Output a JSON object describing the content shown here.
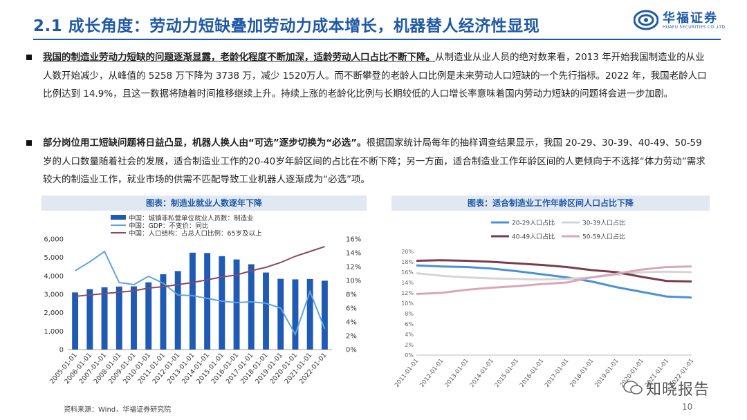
{
  "header": {
    "title": "2.1 成长角度：劳动力短缺叠加劳动力成本增长，机器替人经济性显现"
  },
  "logo": {
    "name_cn": "华福证券",
    "name_en": "HUAFU SECURITIES CO.,LTD."
  },
  "paragraphs": {
    "p1": {
      "lead": "我国的制造业劳动力短缺的问题逐渐显露，老龄化程度不断加深，适龄劳动人口占比不断下降。",
      "body": "从制造业从业人员的绝对数来看，2013 年开始我国制造业的从业人数开始减少，从峰值的 5258 万下降为 3738 万，减少 1520万人。而不断攀登的老龄人口比例是未来劳动人口短缺的一个先行指标。2022 年，我国老龄人口比例达到 14.9%，且这一数据将随着时间推移继续上升。持续上涨的老龄化比例与长期较低的人口增长率意味着国内劳动力短缺的问题将会进一步加剧。"
    },
    "p2": {
      "lead": "部分岗位用工短缺问题将日益凸显，机器人换人由“可选”逐步切换为“必选”。",
      "body": "根据国家统计局每年的抽样调查结果显示，我国 20-29、30-39、40-49、50-59 岁的人口数量随着社会的发展，适合制造业工作的20-40岁年龄区间的占比在不断下降；另一方面，适合制造业工作年龄区间的人更倾向于不选择“体力劳动”需求较大的制造业工作，就业市场的供需不匹配导致工业机器人逐渐成为“必选”项。"
    }
  },
  "chart_headers": {
    "left": "图表：制造业就业人数逐年下降",
    "right": "图表：适合制造业工作年龄区间人口占比下降"
  },
  "footer": {
    "source": "资料来源：Wind，华福证券研究院",
    "page": "10",
    "watermark": "知晓报告"
  },
  "chart_data": [
    {
      "type": "bar",
      "title": "",
      "categories": [
        "2005-01-01",
        "2006-01-01",
        "2007-01-01",
        "2008-01-01",
        "2009-01-01",
        "2010-01-01",
        "2011-01-01",
        "2012-01-01",
        "2013-01-01",
        "2014-01-01",
        "2015-01-01",
        "2016-01-01",
        "2017-01-01",
        "2018-01-01",
        "2019-01-01",
        "2020-01-01",
        "2021-01-01",
        "2022-01-01"
      ],
      "series": [
        {
          "name": "中国：城镇非私营单位就业人员数：制造业",
          "axis": "left",
          "kind": "bar",
          "color": "#1f5bb5",
          "values": [
            3100,
            3280,
            3380,
            3420,
            3430,
            3650,
            4090,
            4260,
            5258,
            5240,
            5070,
            4890,
            4630,
            4180,
            3840,
            3810,
            3830,
            3738
          ]
        },
        {
          "name": "中国：GDP：不变价：同比",
          "axis": "right",
          "kind": "line",
          "color": "#5fa3dd",
          "values": [
            11.4,
            12.7,
            14.2,
            9.7,
            9.4,
            10.6,
            9.6,
            7.9,
            7.8,
            7.4,
            7.0,
            6.8,
            6.9,
            6.7,
            6.0,
            2.2,
            8.4,
            3.0
          ]
        },
        {
          "name": "中国：人口结构：占总人口比例：65岁及以上",
          "axis": "right",
          "kind": "line",
          "color": "#8b4a5c",
          "values": [
            7.7,
            7.9,
            8.1,
            8.3,
            8.5,
            8.9,
            9.1,
            9.4,
            9.7,
            10.1,
            10.5,
            10.8,
            11.4,
            11.9,
            12.6,
            13.5,
            14.2,
            14.9
          ]
        }
      ],
      "y_left": {
        "min": 0,
        "max": 6000,
        "ticks": [
          "0",
          "1,000",
          "2,000",
          "3,000",
          "4,000",
          "5,000",
          "6,000"
        ]
      },
      "y_right": {
        "min": 0,
        "max": 16,
        "ticks": [
          "0%",
          "2%",
          "4%",
          "6%",
          "8%",
          "10%",
          "12%",
          "14%",
          "16%"
        ]
      },
      "legend": "top"
    },
    {
      "type": "line",
      "title": "",
      "categories": [
        "2011-01-01",
        "2012-01-01",
        "2013-01-01",
        "2014-01-01",
        "2015-01-01",
        "2016-01-01",
        "2017-01-01",
        "2018-01-01",
        "2019-01-01",
        "2020-01-01",
        "2021-01-01",
        "2022-01-01"
      ],
      "series": [
        {
          "name": "20-29人口占比",
          "color": "#4a90d9",
          "values": [
            17.3,
            17.1,
            17.0,
            16.7,
            16.2,
            15.6,
            15.0,
            14.2,
            13.1,
            12.2,
            11.3,
            11.1
          ]
        },
        {
          "name": "30-39人口占比",
          "color": "#d5d5d5",
          "values": [
            15.8,
            15.3,
            15.0,
            14.8,
            14.7,
            14.6,
            14.7,
            15.0,
            15.5,
            16.0,
            16.1,
            16.0
          ]
        },
        {
          "name": "40-49人口占比",
          "color": "#7a3b4b",
          "values": [
            18.2,
            18.3,
            18.2,
            18.0,
            17.7,
            17.4,
            17.0,
            16.4,
            16.0,
            15.1,
            14.3,
            14.2
          ]
        },
        {
          "name": "50-59人口占比",
          "color": "#d9a6b8",
          "values": [
            11.8,
            12.0,
            12.6,
            13.0,
            13.3,
            13.7,
            14.0,
            15.0,
            15.7,
            16.5,
            17.0,
            17.1
          ]
        }
      ],
      "y": {
        "min": 0,
        "max": 20,
        "ticks": [
          "0%",
          "2%",
          "4%",
          "6%",
          "8%",
          "10%",
          "12%",
          "14%",
          "16%",
          "18%",
          "20%"
        ]
      },
      "legend": "top"
    }
  ]
}
